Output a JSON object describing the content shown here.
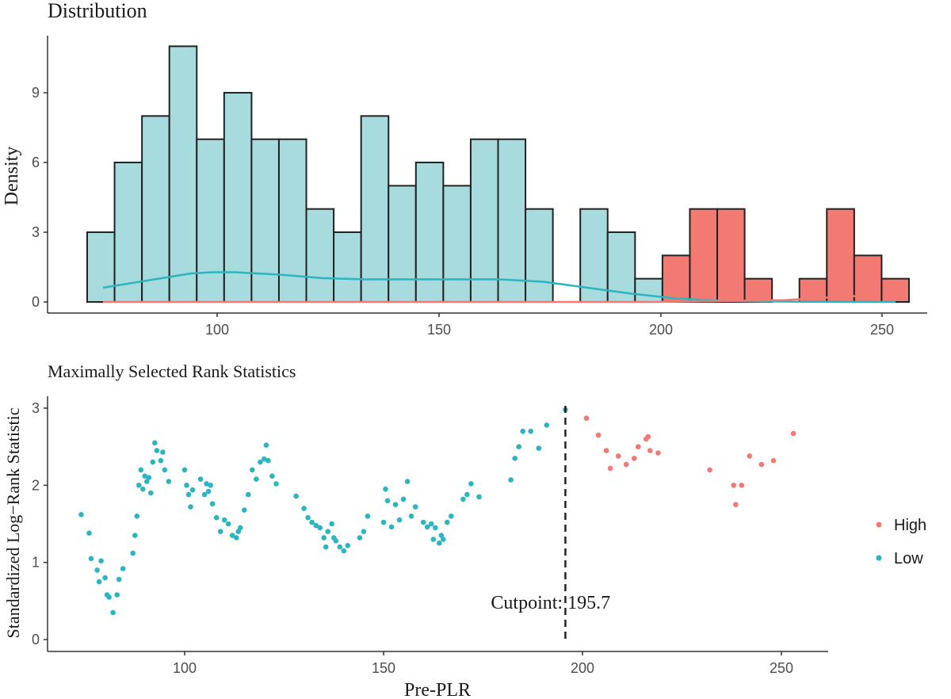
{
  "chart_data": [
    {
      "type": "bar",
      "title": "Distribution",
      "xlabel": "",
      "ylabel": "Density",
      "xlim": [
        65,
        260
      ],
      "ylim": [
        0,
        12
      ],
      "y_ticks": [
        0,
        3,
        6,
        9
      ],
      "x_ticks": [
        100,
        150,
        200,
        250
      ],
      "bin_width": 6.8,
      "series": [
        {
          "name": "Low",
          "color": "#a7dbde",
          "bins": [
            {
              "x0": 75.3,
              "x1": 82.1,
              "count": 3
            },
            {
              "x0": 82.1,
              "x1": 88.9,
              "count": 6
            },
            {
              "x0": 88.9,
              "x1": 95.7,
              "count": 8
            },
            {
              "x0": 95.7,
              "x1": 102.5,
              "count": 11
            },
            {
              "x0": 102.5,
              "x1": 109.3,
              "count": 7
            },
            {
              "x0": 109.3,
              "x1": 116.1,
              "count": 9
            },
            {
              "x0": 116.1,
              "x1": 122.9,
              "count": 7
            },
            {
              "x0": 122.9,
              "x1": 129.7,
              "count": 7
            },
            {
              "x0": 129.7,
              "x1": 136.5,
              "count": 4
            },
            {
              "x0": 136.5,
              "x1": 143.3,
              "count": 3
            },
            {
              "x0": 143.3,
              "x1": 150.1,
              "count": 8
            },
            {
              "x0": 150.1,
              "x1": 156.9,
              "count": 5
            },
            {
              "x0": 156.9,
              "x1": 163.7,
              "count": 6
            },
            {
              "x0": 163.7,
              "x1": 170.5,
              "count": 5
            },
            {
              "x0": 170.5,
              "x1": 177.3,
              "count": 7
            },
            {
              "x0": 177.3,
              "x1": 184.1,
              "count": 7
            },
            {
              "x0": 184.1,
              "x1": 190.9,
              "count": 4
            },
            {
              "x0": 197.7,
              "x1": 204.5,
              "count": 4
            },
            {
              "x0": 204.5,
              "x1": 211.3,
              "count": 3
            },
            {
              "x0": 211.3,
              "x1": 218.1,
              "count": 1
            }
          ],
          "density_curve": {
            "color": "#2bb5bf",
            "x": [
              75,
              85,
              95,
              100,
              105,
              115,
              125,
              135,
              145,
              155,
              165,
              175,
              185,
              195,
              205,
              215,
              225,
              235,
              245,
              255
            ],
            "y": [
              0.6,
              0.9,
              1.2,
              1.25,
              1.25,
              1.15,
              1.0,
              0.95,
              0.95,
              0.95,
              0.95,
              0.85,
              0.6,
              0.35,
              0.15,
              0.05,
              0.02,
              0.01,
              0.0,
              0.0
            ]
          }
        },
        {
          "name": "High",
          "color": "#f27a72",
          "bins": [
            {
              "x0": 218.1,
              "x1": 224.9,
              "count": 2
            },
            {
              "x0": 224.9,
              "x1": 231.7,
              "count": 4
            },
            {
              "x0": 231.7,
              "x1": 238.5,
              "count": 4
            },
            {
              "x0": 238.5,
              "x1": 245.3,
              "count": 1
            },
            {
              "x0": 252.1,
              "x1": 258.9,
              "count": 1
            },
            {
              "x0": 258.9,
              "x1": 265.7,
              "count": 4
            },
            {
              "x0": 265.7,
              "x1": 272.5,
              "count": 2
            },
            {
              "x0": 272.5,
              "x1": 279.3,
              "count": 1
            }
          ],
          "density_curve": {
            "color": "#f27a72",
            "x": [
              75,
              120,
              160,
              200,
              230,
              245,
              250
            ],
            "y": [
              0.0,
              0.0,
              0.0,
              0.0,
              0.08,
              0.25,
              0.2
            ]
          }
        }
      ]
    },
    {
      "type": "scatter",
      "title": "Maximally Selected Rank Statistics",
      "xlabel": "Pre-PLR",
      "ylabel": "Standardized Log−Rank Statistic",
      "xlim": [
        65,
        262
      ],
      "ylim": [
        -0.1,
        3.05
      ],
      "x_ticks": [
        100,
        150,
        200,
        250
      ],
      "y_ticks": [
        0,
        1,
        2,
        3
      ],
      "cutpoint": {
        "value": 195.7,
        "label": "Cutpoint: 195.7"
      },
      "legend": {
        "placement": "right",
        "entries": [
          "High",
          "Low"
        ]
      },
      "series": [
        {
          "name": "Low",
          "color": "#2bb5bf",
          "points": [
            [
              74,
              1.62
            ],
            [
              76,
              1.38
            ],
            [
              76.5,
              1.05
            ],
            [
              78,
              0.9
            ],
            [
              78.5,
              0.75
            ],
            [
              79,
              1.02
            ],
            [
              80,
              0.8
            ],
            [
              80.5,
              0.58
            ],
            [
              81,
              0.55
            ],
            [
              82,
              0.35
            ],
            [
              83,
              0.58
            ],
            [
              83.5,
              0.78
            ],
            [
              84.5,
              0.92
            ],
            [
              87,
              1.12
            ],
            [
              87.5,
              1.35
            ],
            [
              88,
              1.6
            ],
            [
              88.5,
              2.0
            ],
            [
              89,
              2.2
            ],
            [
              89.5,
              1.95
            ],
            [
              90,
              2.12
            ],
            [
              90.5,
              2.05
            ],
            [
              91,
              2.1
            ],
            [
              91.5,
              1.9
            ],
            [
              92,
              2.3
            ],
            [
              92.5,
              2.55
            ],
            [
              93,
              2.45
            ],
            [
              94,
              2.32
            ],
            [
              94.5,
              2.43
            ],
            [
              95,
              2.2
            ],
            [
              96,
              2.05
            ],
            [
              100,
              2.2
            ],
            [
              100.5,
              2.0
            ],
            [
              101,
              1.88
            ],
            [
              101.5,
              1.72
            ],
            [
              102,
              1.94
            ],
            [
              104,
              2.08
            ],
            [
              105,
              1.88
            ],
            [
              105.5,
              2.02
            ],
            [
              106,
              1.92
            ],
            [
              106.5,
              2.0
            ],
            [
              107,
              1.76
            ],
            [
              108,
              1.58
            ],
            [
              109,
              1.4
            ],
            [
              110,
              1.55
            ],
            [
              111,
              1.5
            ],
            [
              112,
              1.35
            ],
            [
              113,
              1.32
            ],
            [
              113.5,
              1.4
            ],
            [
              114,
              1.45
            ],
            [
              115,
              1.68
            ],
            [
              116,
              1.88
            ],
            [
              117,
              2.2
            ],
            [
              118,
              2.08
            ],
            [
              119,
              2.3
            ],
            [
              120,
              2.34
            ],
            [
              120.5,
              2.52
            ],
            [
              121,
              2.32
            ],
            [
              122,
              2.12
            ],
            [
              123,
              2.02
            ],
            [
              128,
              1.86
            ],
            [
              130,
              1.7
            ],
            [
              131,
              1.58
            ],
            [
              132,
              1.52
            ],
            [
              133,
              1.48
            ],
            [
              134,
              1.45
            ],
            [
              135,
              1.32
            ],
            [
              135.5,
              1.2
            ],
            [
              136,
              1.4
            ],
            [
              137,
              1.5
            ],
            [
              137.5,
              1.32
            ],
            [
              138,
              1.28
            ],
            [
              139,
              1.2
            ],
            [
              140,
              1.15
            ],
            [
              141,
              1.22
            ],
            [
              144,
              1.32
            ],
            [
              145,
              1.4
            ],
            [
              146,
              1.6
            ],
            [
              150,
              1.52
            ],
            [
              150.5,
              1.95
            ],
            [
              151,
              1.8
            ],
            [
              152,
              1.46
            ],
            [
              153,
              1.75
            ],
            [
              154,
              1.55
            ],
            [
              155,
              1.82
            ],
            [
              156,
              2.05
            ],
            [
              157,
              1.6
            ],
            [
              158,
              1.72
            ],
            [
              160,
              1.52
            ],
            [
              161,
              1.46
            ],
            [
              162,
              1.5
            ],
            [
              162.5,
              1.3
            ],
            [
              163,
              1.45
            ],
            [
              164,
              1.25
            ],
            [
              164.5,
              1.35
            ],
            [
              165,
              1.3
            ],
            [
              166,
              1.52
            ],
            [
              167,
              1.6
            ],
            [
              170,
              1.82
            ],
            [
              171,
              1.88
            ],
            [
              172,
              2.02
            ],
            [
              174,
              1.85
            ],
            [
              182,
              2.07
            ],
            [
              183,
              2.35
            ],
            [
              184,
              2.5
            ],
            [
              185,
              2.7
            ],
            [
              187,
              2.7
            ],
            [
              189,
              2.48
            ],
            [
              191,
              2.78
            ],
            [
              195.7,
              2.98
            ]
          ]
        },
        {
          "name": "High",
          "color": "#f27a72",
          "points": [
            [
              201,
              2.87
            ],
            [
              204,
              2.65
            ],
            [
              206,
              2.45
            ],
            [
              207,
              2.22
            ],
            [
              209,
              2.38
            ],
            [
              211,
              2.27
            ],
            [
              213,
              2.35
            ],
            [
              214,
              2.5
            ],
            [
              216,
              2.6
            ],
            [
              216.5,
              2.63
            ],
            [
              217,
              2.45
            ],
            [
              219,
              2.42
            ],
            [
              232,
              2.2
            ],
            [
              238,
              2.0
            ],
            [
              238.5,
              1.75
            ],
            [
              240,
              2.0
            ],
            [
              242,
              2.38
            ],
            [
              245,
              2.27
            ],
            [
              248,
              2.32
            ],
            [
              253,
              2.67
            ]
          ]
        }
      ]
    }
  ]
}
